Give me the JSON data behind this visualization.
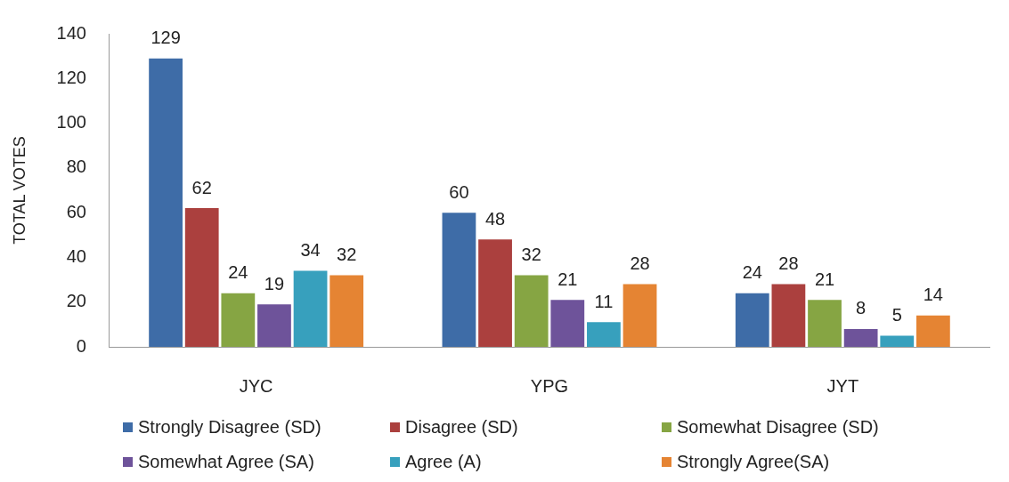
{
  "chart_data": {
    "type": "bar",
    "ylabel": "TOTAL VOTES",
    "categories": [
      "JYC",
      "YPG",
      "JYT"
    ],
    "series": [
      {
        "name": "Strongly Disagree (SD)",
        "color": "#3e6ca7",
        "values": [
          129,
          60,
          24
        ]
      },
      {
        "name": "Disagree (SD)",
        "color": "#ab403e",
        "values": [
          62,
          48,
          28
        ]
      },
      {
        "name": "Somewhat Disagree (SD)",
        "color": "#86a543",
        "values": [
          24,
          32,
          21
        ]
      },
      {
        "name": "Somewhat Agree (SA)",
        "color": "#6e539a",
        "values": [
          19,
          21,
          8
        ]
      },
      {
        "name": "Agree (A)",
        "color": "#37a0bd",
        "values": [
          34,
          11,
          5
        ]
      },
      {
        "name": "Strongly Agree(SA)",
        "color": "#e58433",
        "values": [
          32,
          28,
          14
        ]
      }
    ],
    "ylim": [
      0,
      140
    ],
    "yticks": [
      0,
      20,
      40,
      60,
      80,
      100,
      120,
      140
    ],
    "legend": "bottom",
    "data_labels": true
  }
}
